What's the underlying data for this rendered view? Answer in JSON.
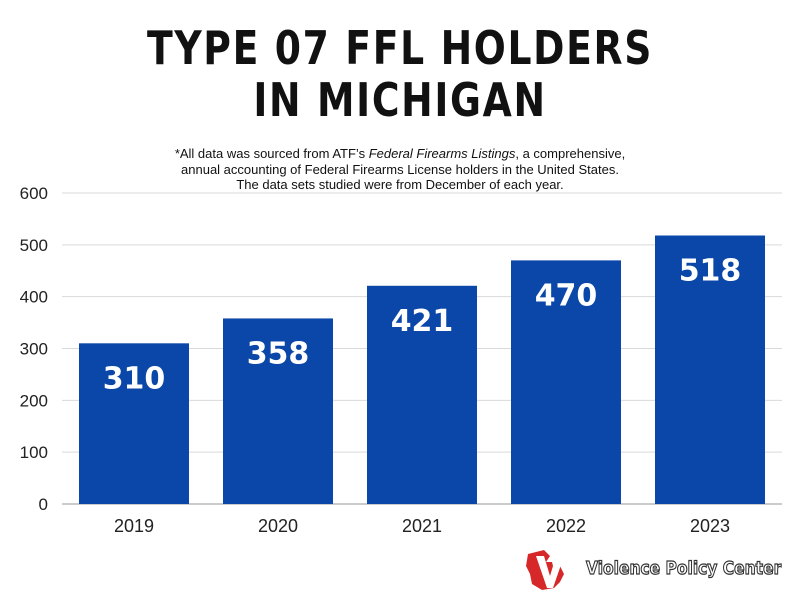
{
  "title_line1": "TYPE 07 FFL HOLDERS",
  "title_line2": "IN MICHIGAN",
  "note": {
    "line1_pre": "*All data was sourced from ATF’s ",
    "line1_italic": "Federal Firearms Listings",
    "line1_post": ", a comprehensive,",
    "line2": "annual accounting of Federal Firearms License holders in the United States.",
    "line3": "The data sets studied were from December of each year."
  },
  "logo": {
    "text": "Violence Policy Center",
    "icon": "vpc-michigan-v-icon",
    "color": "#d62828"
  },
  "chart_data": {
    "type": "bar",
    "categories": [
      "2019",
      "2020",
      "2021",
      "2022",
      "2023"
    ],
    "values": [
      310,
      358,
      421,
      470,
      518
    ],
    "data_labels": [
      "310",
      "358",
      "421",
      "470",
      "518"
    ],
    "y_ticks": [
      "0",
      "100",
      "200",
      "300",
      "400",
      "500",
      "600"
    ],
    "ylim": [
      0,
      600
    ],
    "grid": true,
    "bar_color": "#0b47a8"
  }
}
